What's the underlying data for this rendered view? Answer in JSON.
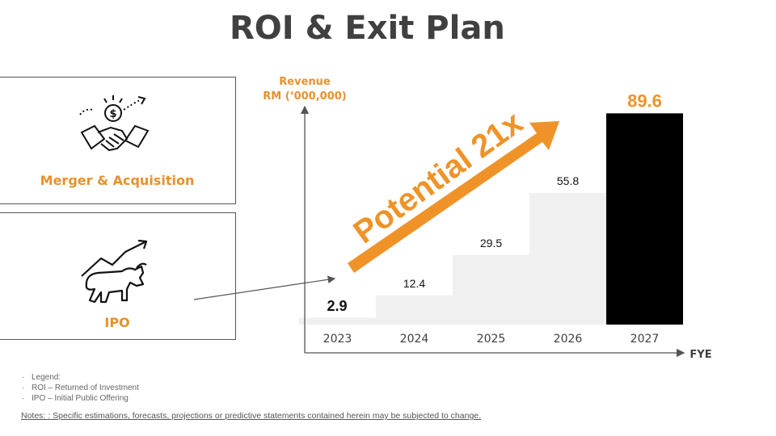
{
  "title": "ROI & Exit Plan",
  "cards": [
    {
      "label": "Merger & Acquisition",
      "icon": "handshake-money-icon"
    },
    {
      "label": "IPO",
      "icon": "bull-market-icon"
    }
  ],
  "chart_data": {
    "type": "bar",
    "ylabel_line1": "Revenue",
    "ylabel_line2": "RM (‘000,000)",
    "xlabel": "FYE",
    "categories": [
      "2023",
      "2024",
      "2025",
      "2026",
      "2027"
    ],
    "values": [
      2.9,
      12.4,
      29.5,
      55.8,
      89.6
    ],
    "value_labels": [
      "2.9",
      "12.4",
      "29.5",
      "55.8",
      "89.6"
    ],
    "ylim": [
      0,
      100
    ],
    "annotation": "Potential 21x",
    "colors": {
      "bar": "#f0f0f0",
      "highlight": "#000000",
      "accent": "#ef9329",
      "axis": "#555555"
    }
  },
  "legend": {
    "items": [
      "Legend:",
      "ROI – Returned of Investment",
      "IPO – Initial Public Offering"
    ]
  },
  "notes": "Notes: : Specific estimations, forecasts, projections or predictive statements contained herein may be subjected to change."
}
